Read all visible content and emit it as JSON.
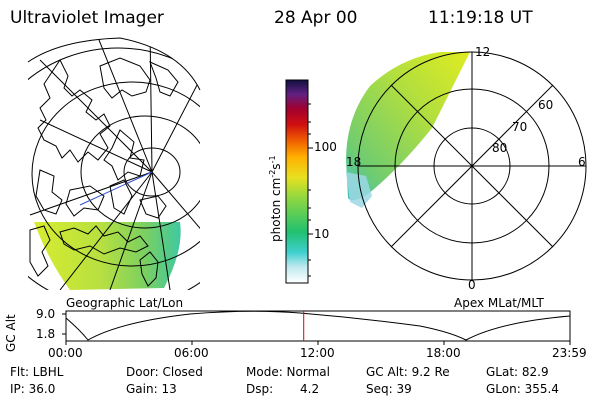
{
  "header": {
    "instrument": "Ultraviolet Imager",
    "date": "28 Apr 00",
    "time": "11:19:18 UT"
  },
  "left_panel": {
    "caption": "Geographic Lat/Lon"
  },
  "right_panel": {
    "caption": "Apex MLat/MLT",
    "mlt_labels": [
      "12",
      "18",
      "6",
      "0"
    ],
    "mlat_labels": [
      "60",
      "70",
      "80"
    ]
  },
  "colorbar": {
    "unit_label": "photon cm",
    "unit_exp1": "-2",
    "unit_mid": "s",
    "unit_exp2": "-1",
    "ticks": [
      "100",
      "10"
    ],
    "scale": "log"
  },
  "altitude_strip": {
    "ylabel": "GC Alt",
    "y_ticks": [
      "9.0",
      "1.8"
    ],
    "x_ticks": [
      "00:00",
      "06:00",
      "12:00",
      "18:00",
      "23:59"
    ],
    "current_time_hours": 11.32,
    "marker_color": "#e00000"
  },
  "info": {
    "filter": "Flt: LBHL",
    "ip": "IP: 36.0",
    "door": "Door: Closed",
    "gain": "Gain: 13",
    "mode": "Mode: Normal",
    "dsp_label": "Dsp:",
    "dsp_value": "4.2",
    "gc_alt": "GC Alt: 9.2 Re",
    "seq": "Seq: 39",
    "glat": "GLat: 82.9",
    "glon": "GLon: 355.4"
  }
}
